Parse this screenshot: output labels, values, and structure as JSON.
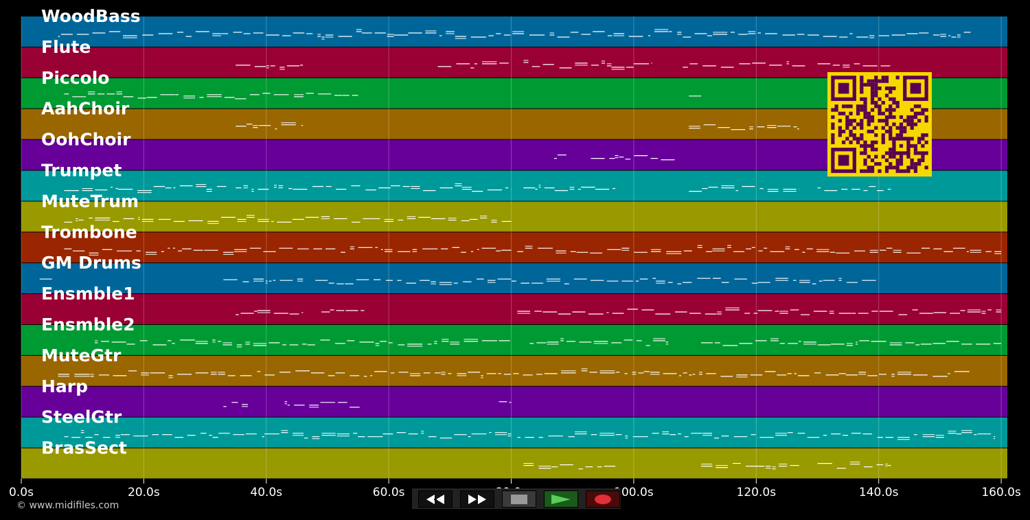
{
  "tracks": [
    {
      "name": "WoodBass",
      "color": "#00669a"
    },
    {
      "name": "Flute",
      "color": "#990033"
    },
    {
      "name": "Piccolo",
      "color": "#009a33"
    },
    {
      "name": "AahChoir",
      "color": "#996600"
    },
    {
      "name": "OohChoir",
      "color": "#660099"
    },
    {
      "name": "Trumpet",
      "color": "#009999"
    },
    {
      "name": "MuteTrum",
      "color": "#999900"
    },
    {
      "name": "Trombone",
      "color": "#992600"
    },
    {
      "name": "GM Drums",
      "color": "#00669a"
    },
    {
      "name": "Ensmble1",
      "color": "#990033"
    },
    {
      "name": "Ensmble2",
      "color": "#009a33"
    },
    {
      "name": "MuteGtr",
      "color": "#996600"
    },
    {
      "name": "Harp",
      "color": "#660099"
    },
    {
      "name": "SteelGtr",
      "color": "#009999"
    },
    {
      "name": "BrasSect",
      "color": "#999900"
    }
  ],
  "timeline": {
    "ticks": [
      "0.0s",
      "20.0s",
      "40.0s",
      "60.0s",
      "80.0s",
      "100.0s",
      "120.0s",
      "140.0s",
      "160.0s"
    ],
    "max_seconds": 161
  },
  "copyright": "© www.midifiles.com",
  "transport": {
    "rewind": {
      "name": "rewind-icon"
    },
    "forward": {
      "name": "fast-forward-icon"
    },
    "stop": {
      "name": "stop-icon"
    },
    "play": {
      "name": "play-icon"
    },
    "record": {
      "name": "record-icon"
    }
  },
  "qr_color": "#f5d800",
  "qr_dark": "#5a0050",
  "note_color": "#ffffff"
}
